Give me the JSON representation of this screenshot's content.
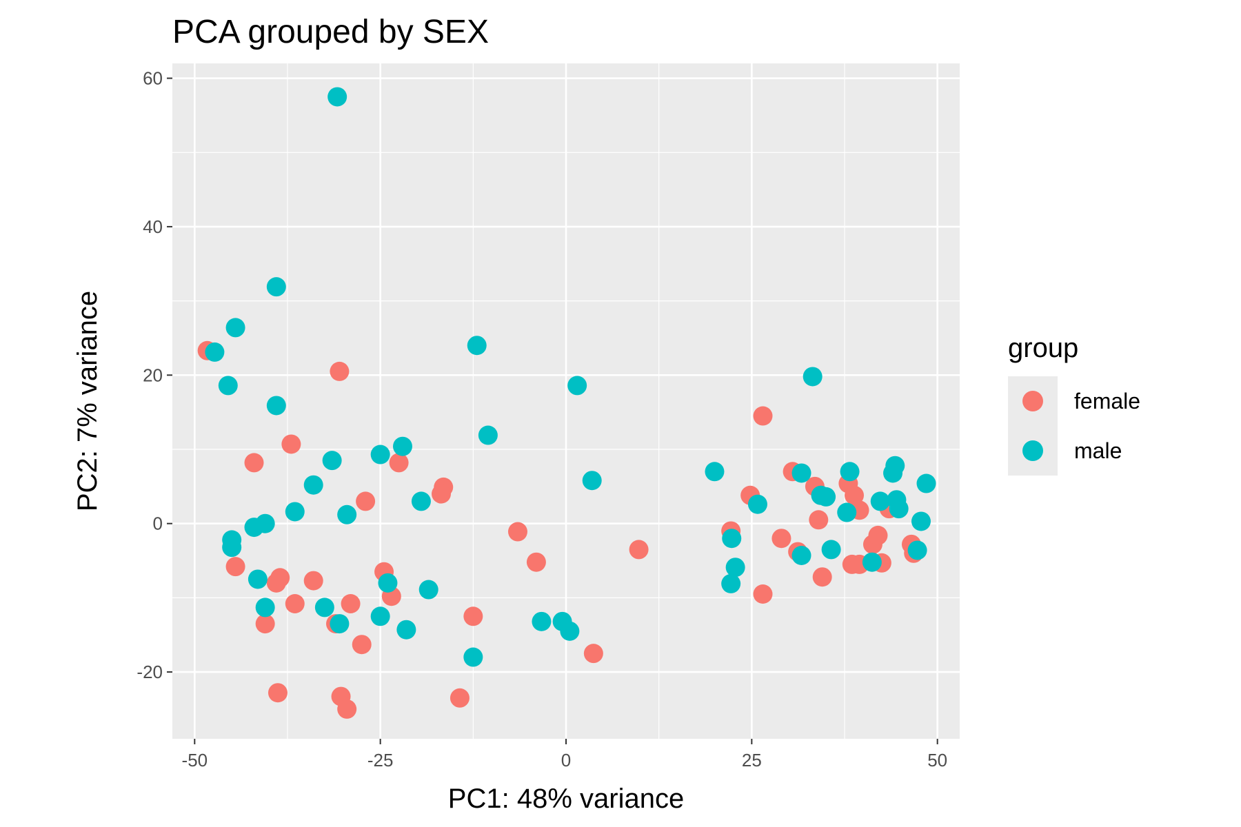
{
  "chart_data": {
    "type": "scatter",
    "title": "PCA grouped by SEX",
    "xlabel": "PC1: 48% variance",
    "ylabel": "PC2: 7% variance",
    "xlim": [
      -53,
      53
    ],
    "ylim": [
      -29,
      62
    ],
    "x_ticks": [
      -50,
      -25,
      0,
      25,
      50
    ],
    "y_ticks": [
      -20,
      0,
      20,
      40,
      60
    ],
    "x_tick_labels": [
      "-50",
      "-25",
      "0",
      "25",
      "50"
    ],
    "y_tick_labels": [
      "-20",
      "0",
      "20",
      "40",
      "60"
    ],
    "grid": true,
    "legend": {
      "title": "group",
      "position": "right"
    },
    "series": [
      {
        "name": "female",
        "color": "#F8766D",
        "points": [
          [
            -48.3,
            23.3
          ],
          [
            -30.5,
            20.5
          ],
          [
            -42.0,
            8.2
          ],
          [
            -37.0,
            10.7
          ],
          [
            -44.5,
            -5.8
          ],
          [
            -38.5,
            -7.3
          ],
          [
            -39.0,
            -8.0
          ],
          [
            -34.0,
            -7.7
          ],
          [
            -36.5,
            -10.8
          ],
          [
            -40.5,
            -13.5
          ],
          [
            -31.0,
            -13.5
          ],
          [
            -29.0,
            -10.8
          ],
          [
            -27.0,
            3.0
          ],
          [
            -24.5,
            -6.5
          ],
          [
            -23.5,
            -9.8
          ],
          [
            -22.5,
            8.2
          ],
          [
            -27.5,
            -16.3
          ],
          [
            -38.8,
            -22.8
          ],
          [
            -30.3,
            -23.3
          ],
          [
            -29.5,
            -25.0
          ],
          [
            -16.5,
            4.9
          ],
          [
            -16.8,
            4.0
          ],
          [
            -12.5,
            -12.5
          ],
          [
            -14.3,
            -23.5
          ],
          [
            -6.5,
            -1.1
          ],
          [
            -4.0,
            -5.2
          ],
          [
            3.7,
            -17.5
          ],
          [
            9.8,
            -3.5
          ],
          [
            22.2,
            -1.0
          ],
          [
            24.8,
            3.8
          ],
          [
            26.5,
            14.5
          ],
          [
            26.5,
            -9.5
          ],
          [
            29.0,
            -2.0
          ],
          [
            30.5,
            7.0
          ],
          [
            31.2,
            -3.8
          ],
          [
            33.5,
            5.0
          ],
          [
            34.0,
            0.5
          ],
          [
            34.5,
            -7.2
          ],
          [
            38.0,
            5.4
          ],
          [
            38.8,
            3.8
          ],
          [
            39.5,
            1.8
          ],
          [
            38.5,
            -5.5
          ],
          [
            39.5,
            -5.5
          ],
          [
            41.3,
            -2.8
          ],
          [
            42.0,
            -1.6
          ],
          [
            42.5,
            -5.3
          ],
          [
            43.5,
            2.0
          ],
          [
            46.5,
            -2.8
          ],
          [
            46.8,
            -4.0
          ]
        ]
      },
      {
        "name": "male",
        "color": "#00BFC4",
        "points": [
          [
            -30.8,
            57.5
          ],
          [
            -39.0,
            31.9
          ],
          [
            -44.5,
            26.4
          ],
          [
            -47.3,
            23.1
          ],
          [
            -45.5,
            18.6
          ],
          [
            -39.0,
            15.9
          ],
          [
            -31.5,
            8.5
          ],
          [
            -25.0,
            9.3
          ],
          [
            -22.0,
            10.4
          ],
          [
            -34.0,
            5.2
          ],
          [
            -36.5,
            1.6
          ],
          [
            -29.5,
            1.2
          ],
          [
            -19.5,
            3.0
          ],
          [
            -12.0,
            24.0
          ],
          [
            -10.5,
            11.9
          ],
          [
            1.5,
            18.6
          ],
          [
            3.5,
            5.8
          ],
          [
            -42.0,
            -0.5
          ],
          [
            -40.5,
            0.0
          ],
          [
            -45.0,
            -2.2
          ],
          [
            -45.0,
            -3.2
          ],
          [
            -41.5,
            -7.5
          ],
          [
            -40.5,
            -11.3
          ],
          [
            -32.5,
            -11.3
          ],
          [
            -30.5,
            -13.5
          ],
          [
            -25.0,
            -12.5
          ],
          [
            -24.0,
            -8.0
          ],
          [
            -21.5,
            -14.3
          ],
          [
            -18.5,
            -8.9
          ],
          [
            -12.5,
            -18.0
          ],
          [
            -3.3,
            -13.2
          ],
          [
            -0.5,
            -13.2
          ],
          [
            0.5,
            -14.5
          ],
          [
            20.0,
            7.0
          ],
          [
            22.3,
            -2.0
          ],
          [
            22.8,
            -5.9
          ],
          [
            22.2,
            -8.1
          ],
          [
            25.8,
            2.6
          ],
          [
            31.7,
            6.8
          ],
          [
            31.7,
            -4.3
          ],
          [
            33.2,
            19.8
          ],
          [
            34.3,
            3.8
          ],
          [
            35.0,
            3.6
          ],
          [
            35.7,
            -3.5
          ],
          [
            37.8,
            1.5
          ],
          [
            38.2,
            7.0
          ],
          [
            41.2,
            -5.2
          ],
          [
            42.3,
            3.0
          ],
          [
            44.3,
            7.8
          ],
          [
            44.0,
            6.8
          ],
          [
            44.5,
            3.2
          ],
          [
            44.8,
            2.0
          ],
          [
            47.3,
            -3.6
          ],
          [
            47.8,
            0.3
          ],
          [
            48.5,
            5.4
          ]
        ]
      }
    ]
  }
}
